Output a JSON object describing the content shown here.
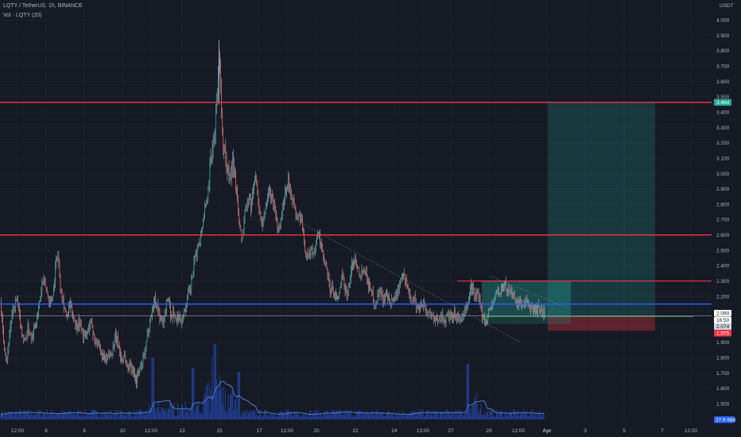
{
  "header": {
    "title": "LQTY / TetherUS, 1h, BINANCE",
    "volume_label": "Vol · LQTY (20)"
  },
  "chart_data": {
    "type": "candlestick",
    "symbol": "LQTY / TetherUS",
    "interval": "1h",
    "exchange": "BINANCE",
    "y_axis_unit": "USDT",
    "ylim": [
      1.4,
      4.1
    ],
    "y_ticks": [
      "4.000",
      "3.900",
      "3.800",
      "3.700",
      "3.600",
      "3.500",
      "3.400",
      "3.300",
      "3.200",
      "3.100",
      "3.000",
      "2.900",
      "2.800",
      "2.700",
      "2.600",
      "2.500",
      "2.400",
      "2.300",
      "2.200",
      "2.100",
      "2.000",
      "1.900",
      "1.800",
      "1.700",
      "1.600",
      "1.500"
    ],
    "x_ticks": [
      "12:00",
      "6",
      "8",
      "10",
      "12:00",
      "13",
      "15",
      "17",
      "12:00",
      "20",
      "22",
      "24",
      "13:00",
      "27",
      "29",
      "12:00",
      "Apr",
      "3",
      "5",
      "7",
      "12:00"
    ],
    "price_path": [
      [
        0,
        2.16
      ],
      [
        3,
        1.98
      ],
      [
        5,
        1.88
      ],
      [
        7,
        1.82
      ],
      [
        9,
        1.8
      ],
      [
        11,
        1.95
      ],
      [
        14,
        2.05
      ],
      [
        17,
        2.12
      ],
      [
        20,
        2.18
      ],
      [
        23,
        2.1
      ],
      [
        27,
        1.97
      ],
      [
        31,
        1.9
      ],
      [
        35,
        2.0
      ],
      [
        39,
        1.93
      ],
      [
        43,
        2.02
      ],
      [
        46,
        2.05
      ],
      [
        50,
        2.18
      ],
      [
        53,
        2.3
      ],
      [
        56,
        2.28
      ],
      [
        60,
        2.2
      ],
      [
        63,
        2.15
      ],
      [
        67,
        2.25
      ],
      [
        70,
        2.42
      ],
      [
        72,
        2.5
      ],
      [
        75,
        2.3
      ],
      [
        78,
        2.2
      ],
      [
        81,
        2.12
      ],
      [
        84,
        2.05
      ],
      [
        87,
        2.15
      ],
      [
        90,
        2.1
      ],
      [
        93,
        2.06
      ],
      [
        96,
        2.0
      ],
      [
        99,
        2.05
      ],
      [
        102,
        1.98
      ],
      [
        106,
        1.93
      ],
      [
        110,
        1.97
      ],
      [
        114,
        2.05
      ],
      [
        117,
        1.95
      ],
      [
        121,
        1.9
      ],
      [
        125,
        1.85
      ],
      [
        129,
        1.8
      ],
      [
        133,
        1.77
      ],
      [
        137,
        1.82
      ],
      [
        141,
        1.85
      ],
      [
        145,
        1.93
      ],
      [
        149,
        1.88
      ],
      [
        152,
        1.78
      ],
      [
        156,
        1.82
      ],
      [
        160,
        1.73
      ],
      [
        164,
        1.76
      ],
      [
        168,
        1.7
      ],
      [
        171,
        1.65
      ],
      [
        174,
        1.71
      ],
      [
        177,
        1.73
      ],
      [
        180,
        1.8
      ],
      [
        183,
        1.85
      ],
      [
        185,
        1.96
      ],
      [
        188,
        2.05
      ],
      [
        191,
        2.11
      ],
      [
        194,
        2.18
      ],
      [
        197,
        2.15
      ],
      [
        200,
        2.08
      ],
      [
        203,
        2.02
      ],
      [
        206,
        2.06
      ],
      [
        209,
        2.16
      ],
      [
        212,
        2.18
      ],
      [
        215,
        2.05
      ],
      [
        218,
        2.12
      ],
      [
        221,
        2.02
      ],
      [
        224,
        2.08
      ],
      [
        227,
        2.04
      ],
      [
        230,
        2.08
      ],
      [
        233,
        2.13
      ],
      [
        236,
        2.2
      ],
      [
        239,
        2.24
      ],
      [
        242,
        2.35
      ],
      [
        245,
        2.45
      ],
      [
        248,
        2.52
      ],
      [
        251,
        2.58
      ],
      [
        254,
        2.66
      ],
      [
        257,
        2.78
      ],
      [
        260,
        2.83
      ],
      [
        262,
        2.95
      ],
      [
        264,
        3.05
      ],
      [
        266,
        3.13
      ],
      [
        268,
        3.22
      ],
      [
        270,
        3.3
      ],
      [
        272,
        3.5
      ],
      [
        274,
        3.66
      ],
      [
        276,
        3.7
      ],
      [
        278,
        3.45
      ],
      [
        280,
        3.2
      ],
      [
        283,
        3.08
      ],
      [
        286,
        3.05
      ],
      [
        289,
        3.0
      ],
      [
        292,
        3.12
      ],
      [
        295,
        3.0
      ],
      [
        298,
        2.82
      ],
      [
        300,
        2.7
      ],
      [
        303,
        2.57
      ],
      [
        305,
        2.6
      ],
      [
        307,
        2.72
      ],
      [
        310,
        2.8
      ],
      [
        313,
        2.85
      ],
      [
        315,
        2.75
      ],
      [
        318,
        2.92
      ],
      [
        321,
        2.98
      ],
      [
        324,
        2.85
      ],
      [
        327,
        2.7
      ],
      [
        330,
        2.65
      ],
      [
        332,
        2.73
      ],
      [
        335,
        2.82
      ],
      [
        338,
        2.9
      ],
      [
        341,
        2.85
      ],
      [
        344,
        2.8
      ],
      [
        347,
        2.72
      ],
      [
        350,
        2.62
      ],
      [
        353,
        2.7
      ],
      [
        356,
        2.82
      ],
      [
        359,
        2.9
      ],
      [
        362,
        2.95
      ],
      [
        364,
        2.92
      ],
      [
        367,
        2.85
      ],
      [
        370,
        2.78
      ],
      [
        373,
        2.7
      ],
      [
        376,
        2.73
      ],
      [
        379,
        2.68
      ],
      [
        382,
        2.55
      ],
      [
        385,
        2.48
      ],
      [
        388,
        2.45
      ],
      [
        391,
        2.52
      ],
      [
        394,
        2.48
      ],
      [
        397,
        2.55
      ],
      [
        400,
        2.6
      ],
      [
        403,
        2.55
      ],
      [
        406,
        2.45
      ],
      [
        409,
        2.4
      ],
      [
        412,
        2.33
      ],
      [
        415,
        2.22
      ],
      [
        418,
        2.26
      ],
      [
        421,
        2.2
      ],
      [
        424,
        2.17
      ],
      [
        427,
        2.24
      ],
      [
        430,
        2.33
      ],
      [
        433,
        2.27
      ],
      [
        436,
        2.22
      ],
      [
        439,
        2.28
      ],
      [
        442,
        2.4
      ],
      [
        445,
        2.44
      ],
      [
        448,
        2.42
      ],
      [
        451,
        2.38
      ],
      [
        454,
        2.34
      ],
      [
        457,
        2.4
      ],
      [
        460,
        2.35
      ],
      [
        463,
        2.28
      ],
      [
        466,
        2.25
      ],
      [
        469,
        2.2
      ],
      [
        472,
        2.13
      ],
      [
        475,
        2.22
      ],
      [
        478,
        2.24
      ],
      [
        481,
        2.18
      ],
      [
        484,
        2.2
      ],
      [
        487,
        2.18
      ],
      [
        490,
        2.14
      ],
      [
        493,
        2.16
      ],
      [
        496,
        2.2
      ],
      [
        499,
        2.22
      ],
      [
        502,
        2.3
      ],
      [
        505,
        2.35
      ],
      [
        508,
        2.33
      ],
      [
        511,
        2.27
      ],
      [
        514,
        2.22
      ],
      [
        517,
        2.18
      ],
      [
        520,
        2.2
      ],
      [
        523,
        2.13
      ],
      [
        526,
        2.12
      ],
      [
        529,
        2.15
      ],
      [
        532,
        2.16
      ],
      [
        535,
        2.12
      ],
      [
        538,
        2.08
      ],
      [
        541,
        2.1
      ],
      [
        544,
        2.06
      ],
      [
        547,
        2.03
      ],
      [
        550,
        2.05
      ],
      [
        553,
        2.08
      ],
      [
        556,
        2.06
      ],
      [
        559,
        2.04
      ],
      [
        562,
        2.07
      ],
      [
        565,
        2.06
      ],
      [
        568,
        2.05
      ],
      [
        571,
        2.08
      ],
      [
        574,
        2.06
      ],
      [
        577,
        2.04
      ],
      [
        580,
        2.06
      ],
      [
        583,
        2.07
      ],
      [
        586,
        2.12
      ],
      [
        589,
        2.18
      ],
      [
        592,
        2.27
      ],
      [
        595,
        2.24
      ],
      [
        598,
        2.19
      ],
      [
        601,
        2.22
      ],
      [
        604,
        2.11
      ],
      [
        607,
        2.06
      ],
      [
        610,
        2.04
      ],
      [
        613,
        2.08
      ],
      [
        616,
        2.12
      ],
      [
        619,
        2.15
      ],
      [
        622,
        2.18
      ],
      [
        625,
        2.24
      ],
      [
        628,
        2.22
      ],
      [
        631,
        2.25
      ],
      [
        634,
        2.28
      ],
      [
        637,
        2.24
      ],
      [
        640,
        2.25
      ],
      [
        643,
        2.22
      ],
      [
        646,
        2.2
      ],
      [
        649,
        2.17
      ],
      [
        652,
        2.15
      ],
      [
        655,
        2.17
      ],
      [
        658,
        2.13
      ],
      [
        661,
        2.16
      ],
      [
        664,
        2.14
      ],
      [
        667,
        2.12
      ],
      [
        670,
        2.14
      ],
      [
        673,
        2.11
      ],
      [
        676,
        2.12
      ],
      [
        679,
        2.1
      ],
      [
        682,
        2.09
      ],
      [
        685,
        2.09
      ]
    ],
    "horizontal_lines": [
      {
        "name": "resistance-high",
        "price": 3.464,
        "color": "#f23645"
      },
      {
        "name": "resistance-mid",
        "price": 2.6,
        "color": "#f23645"
      },
      {
        "name": "resistance-short",
        "price": 2.3,
        "color": "#f23645"
      },
      {
        "name": "support-blue",
        "price": 2.15,
        "color": "#2962ff"
      },
      {
        "name": "entry-line",
        "price": 2.074,
        "color": "#9aa0a6"
      }
    ],
    "long_position": {
      "entry": 2.074,
      "target": 3.464,
      "stop": 1.975
    },
    "price_tags": [
      {
        "label": "3.464",
        "price": 3.464,
        "bg": "#22ab94",
        "fg": "#ffffff"
      },
      {
        "label": "2.090",
        "price": 2.09,
        "bg": "#ffffff",
        "fg": "#131722"
      },
      {
        "label": "16:50",
        "price": 2.045,
        "bg": "#ffffff",
        "fg": "#131722"
      },
      {
        "label": "2.074",
        "price": 2.004,
        "bg": "#d1d4dc",
        "fg": "#131722"
      },
      {
        "label": "1.975",
        "price": 1.96,
        "bg": "#f23645",
        "fg": "#ffffff"
      }
    ],
    "volume_tag": {
      "label": "27.9 684",
      "bg": "#2962ff",
      "fg": "#ffffff"
    },
    "colors": {
      "background": "#161a25",
      "up_candle": "#26a69a",
      "down_candle": "#ef5350",
      "wick": "#e0e3eb",
      "volume": "#2962ff",
      "volume_ma": "#4a7bd8",
      "grid": "#232632"
    }
  }
}
